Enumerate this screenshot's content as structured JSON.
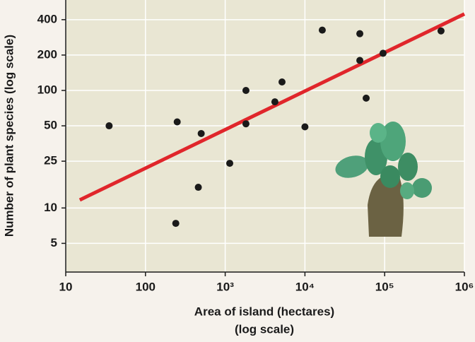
{
  "chart_data": {
    "type": "scatter",
    "ylabel": "Number of plant species (log scale)",
    "xlabel": [
      "Area of island (hectares)",
      "(log scale)"
    ],
    "x_log": true,
    "y_log": true,
    "grid": true,
    "xlim": [
      10,
      1000000
    ],
    "ylim": [
      2.85,
      588
    ],
    "xticks": [
      10,
      100,
      {
        "value": 1000,
        "label": "10³"
      },
      {
        "value": 10000,
        "label": "10⁴"
      },
      {
        "value": 100000,
        "label": "10⁵"
      },
      {
        "value": 1000000,
        "label": "10⁶"
      }
    ],
    "yticks": [
      5,
      10,
      25,
      50,
      100,
      200,
      400
    ],
    "series": [
      {
        "color": "#1a1a1a",
        "x": [
          35,
          250,
          240,
          500,
          460,
          1140,
          1820,
          1820,
          4200,
          5160,
          10000,
          16500,
          48800,
          48800,
          58600,
          95500,
          509000
        ],
        "values": [
          50,
          54,
          7.4,
          43,
          15,
          24,
          100,
          52,
          80,
          118,
          49,
          326,
          304,
          180,
          86,
          207,
          321
        ]
      }
    ],
    "fit_line": {
      "color": "#e0262b",
      "x": [
        15,
        1000000
      ],
      "y": [
        11.7,
        447
      ]
    }
  }
}
